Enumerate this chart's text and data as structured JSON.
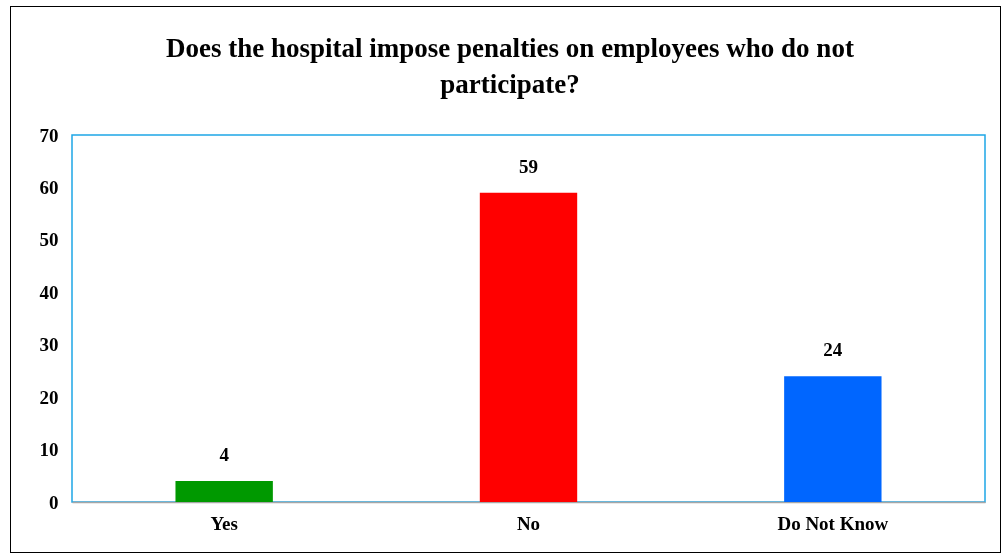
{
  "chart_data": {
    "type": "bar",
    "title": "Does the hospital impose penalties on employees who do not participate?",
    "categories": [
      "Yes",
      "No",
      "Do Not Know"
    ],
    "values": [
      4,
      59,
      24
    ],
    "colors": [
      "#009900",
      "#ff0000",
      "#0066ff"
    ],
    "ylim": [
      0,
      70
    ],
    "yticks": [
      0,
      10,
      20,
      30,
      40,
      50,
      60,
      70
    ],
    "data_labels": true
  }
}
